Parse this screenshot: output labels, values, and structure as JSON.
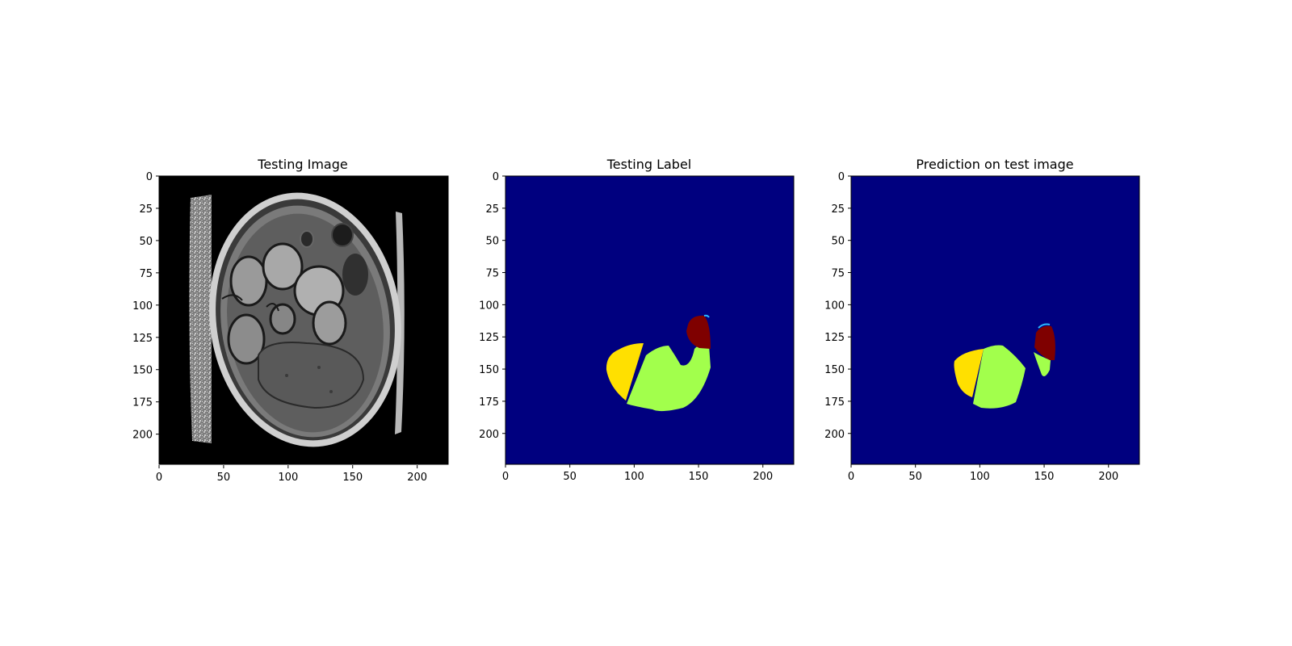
{
  "figure": {
    "panels": [
      {
        "id": "testing-image",
        "title": "Testing Image",
        "kind": "grayscale-mri-slice",
        "background_color": "#000000",
        "xticks": [
          "0",
          "50",
          "100",
          "150",
          "200"
        ],
        "yticks": [
          "0",
          "25",
          "50",
          "75",
          "100",
          "125",
          "150",
          "175",
          "200"
        ],
        "extent": [
          0,
          224,
          224,
          0
        ]
      },
      {
        "id": "testing-label",
        "title": "Testing Label",
        "kind": "segmentation-mask",
        "background_color": "#00007f",
        "xticks": [
          "0",
          "50",
          "100",
          "150",
          "200"
        ],
        "yticks": [
          "0",
          "25",
          "50",
          "75",
          "100",
          "125",
          "150",
          "175",
          "200"
        ],
        "extent": [
          0,
          224,
          224,
          0
        ],
        "regions": [
          {
            "name": "yellow-region",
            "color": "#ffe000"
          },
          {
            "name": "green-region",
            "color": "#a2ff4c"
          },
          {
            "name": "dark-red-region",
            "color": "#7f0000"
          }
        ]
      },
      {
        "id": "prediction",
        "title": "Prediction on test image",
        "kind": "segmentation-mask",
        "background_color": "#00007f",
        "xticks": [
          "0",
          "50",
          "100",
          "150",
          "200"
        ],
        "yticks": [
          "0",
          "25",
          "50",
          "75",
          "100",
          "125",
          "150",
          "175",
          "200"
        ],
        "extent": [
          0,
          224,
          224,
          0
        ],
        "regions": [
          {
            "name": "yellow-region",
            "color": "#ffe000"
          },
          {
            "name": "green-region",
            "color": "#a2ff4c"
          },
          {
            "name": "dark-red-region",
            "color": "#7f0000"
          }
        ]
      }
    ]
  }
}
